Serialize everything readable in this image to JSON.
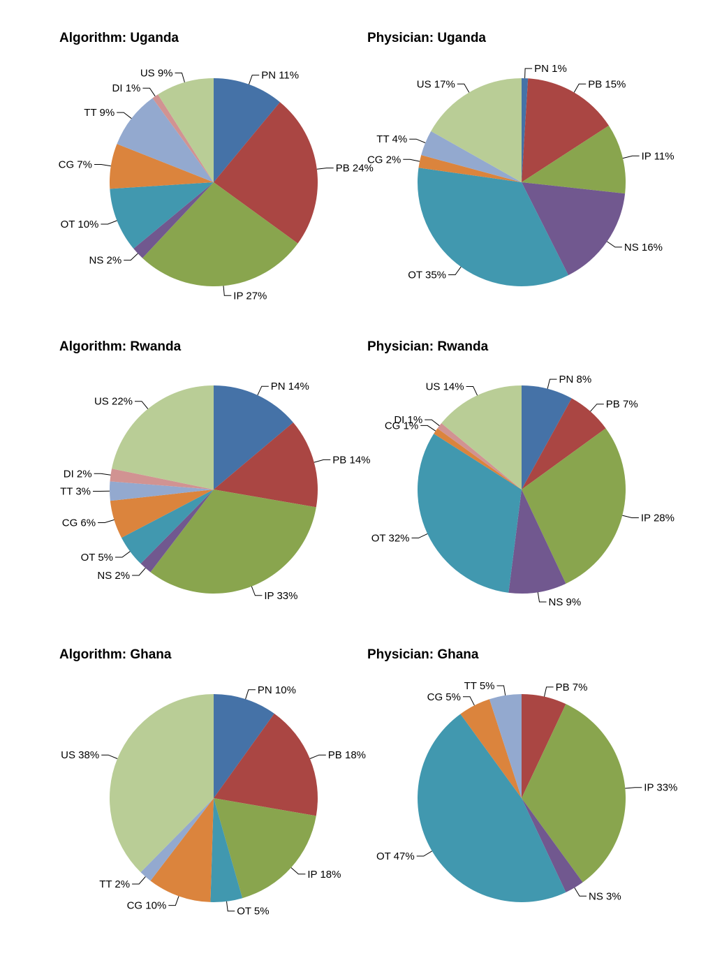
{
  "chart_data": [
    {
      "type": "pie",
      "title": "Algorithm: Uganda",
      "slices": [
        {
          "label": "PN",
          "pct": "11%",
          "value": 11,
          "color": "#4572A7"
        },
        {
          "label": "PB",
          "pct": "24%",
          "value": 24,
          "color": "#AA4643"
        },
        {
          "label": "IP",
          "pct": "27%",
          "value": 27,
          "color": "#89A54E"
        },
        {
          "label": "NS",
          "pct": "2%",
          "value": 2,
          "color": "#71588F"
        },
        {
          "label": "OT",
          "pct": "10%",
          "value": 10,
          "color": "#4198AF"
        },
        {
          "label": "CG",
          "pct": "7%",
          "value": 7,
          "color": "#DB843D"
        },
        {
          "label": "TT",
          "pct": "9%",
          "value": 9,
          "color": "#93A9CF"
        },
        {
          "label": "DI",
          "pct": "1%",
          "value": 1,
          "color": "#D19392"
        },
        {
          "label": "US",
          "pct": "9%",
          "value": 9,
          "color": "#B9CD96"
        }
      ]
    },
    {
      "type": "pie",
      "title": "Physician: Uganda",
      "slices": [
        {
          "label": "PN",
          "pct": "1%",
          "value": 1,
          "color": "#4572A7"
        },
        {
          "label": "PB",
          "pct": "15%",
          "value": 15,
          "color": "#AA4643"
        },
        {
          "label": "IP",
          "pct": "11%",
          "value": 11,
          "color": "#89A54E"
        },
        {
          "label": "NS",
          "pct": "16%",
          "value": 16,
          "color": "#71588F"
        },
        {
          "label": "OT",
          "pct": "35%",
          "value": 35,
          "color": "#4198AF"
        },
        {
          "label": "CG",
          "pct": "2%",
          "value": 2,
          "color": "#DB843D"
        },
        {
          "label": "TT",
          "pct": "4%",
          "value": 4,
          "color": "#93A9CF"
        },
        {
          "label": "US",
          "pct": "17%",
          "value": 17,
          "color": "#B9CD96"
        }
      ]
    },
    {
      "type": "pie",
      "title": "Algorithm: Rwanda",
      "slices": [
        {
          "label": "PN",
          "pct": "14%",
          "value": 14,
          "color": "#4572A7"
        },
        {
          "label": "PB",
          "pct": "14%",
          "value": 14,
          "color": "#AA4643"
        },
        {
          "label": "IP",
          "pct": "33%",
          "value": 33,
          "color": "#89A54E"
        },
        {
          "label": "NS",
          "pct": "2%",
          "value": 2,
          "color": "#71588F"
        },
        {
          "label": "OT",
          "pct": "5%",
          "value": 5,
          "color": "#4198AF"
        },
        {
          "label": "CG",
          "pct": "6%",
          "value": 6,
          "color": "#DB843D"
        },
        {
          "label": "TT",
          "pct": "3%",
          "value": 3,
          "color": "#93A9CF"
        },
        {
          "label": "DI",
          "pct": "2%",
          "value": 2,
          "color": "#D19392"
        },
        {
          "label": "US",
          "pct": "22%",
          "value": 22,
          "color": "#B9CD96"
        }
      ]
    },
    {
      "type": "pie",
      "title": "Physician: Rwanda",
      "slices": [
        {
          "label": "PN",
          "pct": "8%",
          "value": 8,
          "color": "#4572A7"
        },
        {
          "label": "PB",
          "pct": "7%",
          "value": 7,
          "color": "#AA4643"
        },
        {
          "label": "IP",
          "pct": "28%",
          "value": 28,
          "color": "#89A54E"
        },
        {
          "label": "NS",
          "pct": "9%",
          "value": 9,
          "color": "#71588F"
        },
        {
          "label": "OT",
          "pct": "32%",
          "value": 32,
          "color": "#4198AF"
        },
        {
          "label": "CG",
          "pct": "1%",
          "value": 1,
          "color": "#DB843D"
        },
        {
          "label": "DI",
          "pct": "1%",
          "value": 1,
          "color": "#D19392"
        },
        {
          "label": "US",
          "pct": "14%",
          "value": 14,
          "color": "#B9CD96"
        }
      ]
    },
    {
      "type": "pie",
      "title": "Algorithm: Ghana",
      "slices": [
        {
          "label": "PN",
          "pct": "10%",
          "value": 10,
          "color": "#4572A7"
        },
        {
          "label": "PB",
          "pct": "18%",
          "value": 18,
          "color": "#AA4643"
        },
        {
          "label": "IP",
          "pct": "18%",
          "value": 18,
          "color": "#89A54E"
        },
        {
          "label": "OT",
          "pct": "5%",
          "value": 5,
          "color": "#4198AF"
        },
        {
          "label": "CG",
          "pct": "10%",
          "value": 10,
          "color": "#DB843D"
        },
        {
          "label": "TT",
          "pct": "2%",
          "value": 2,
          "color": "#93A9CF"
        },
        {
          "label": "US",
          "pct": "38%",
          "value": 38,
          "color": "#B9CD96"
        }
      ]
    },
    {
      "type": "pie",
      "title": "Physician: Ghana",
      "slices": [
        {
          "label": "PB",
          "pct": "7%",
          "value": 7,
          "color": "#AA4643"
        },
        {
          "label": "IP",
          "pct": "33%",
          "value": 33,
          "color": "#89A54E"
        },
        {
          "label": "NS",
          "pct": "3%",
          "value": 3,
          "color": "#71588F"
        },
        {
          "label": "OT",
          "pct": "47%",
          "value": 47,
          "color": "#4198AF"
        },
        {
          "label": "CG",
          "pct": "5%",
          "value": 5,
          "color": "#DB843D"
        },
        {
          "label": "TT",
          "pct": "5%",
          "value": 5,
          "color": "#93A9CF"
        }
      ]
    }
  ]
}
